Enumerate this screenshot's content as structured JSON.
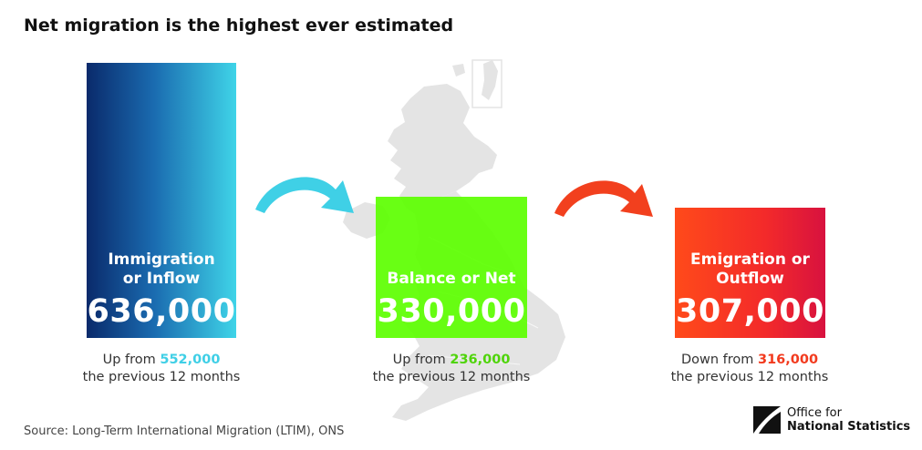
{
  "title": "Net migration is the highest ever estimated",
  "immigration": {
    "label_line1": "Immigration",
    "label_line2": "or Inflow",
    "value": "636,000",
    "caption_prefix": "Up from ",
    "previous": "552,000",
    "caption_suffix": "the previous 12 months"
  },
  "net": {
    "label": "Balance or Net",
    "value": "330,000",
    "caption_prefix": "Up from ",
    "previous": "236,000",
    "caption_suffix": "the previous 12 months"
  },
  "emigration": {
    "label_line1": "Emigration or",
    "label_line2": "Outflow",
    "value": "307,000",
    "caption_prefix": "Down from ",
    "previous": "316,000",
    "caption_suffix": "the previous 12 months"
  },
  "source": "Source: Long-Term International Migration (LTIM), ONS",
  "logo": {
    "line1": "Office for",
    "line2": "National Statistics"
  },
  "colors": {
    "immigration_accent": "#3fcfe6",
    "net_accent": "#5cff00",
    "emigration_accent": "#f23a1e"
  },
  "icons": {
    "arrow_in": "curved-arrow-right-icon",
    "arrow_out": "curved-arrow-right-icon",
    "logo": "ons-logo-icon"
  }
}
